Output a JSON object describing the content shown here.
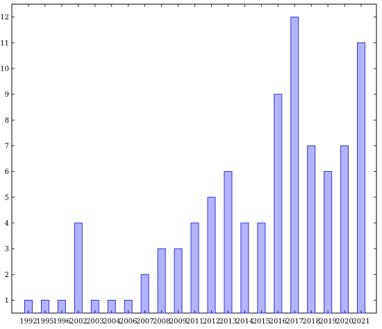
{
  "chart_data": {
    "type": "bar",
    "title": "",
    "xlabel": "",
    "ylabel": "",
    "categories": [
      "1992",
      "1995",
      "1996",
      "2002",
      "2003",
      "2004",
      "2006",
      "2007",
      "2008",
      "2009",
      "2011",
      "2012",
      "2013",
      "2014",
      "2015",
      "2016",
      "2017",
      "2018",
      "2019",
      "2020",
      "2021"
    ],
    "values": [
      1,
      1,
      1,
      4,
      1,
      1,
      1,
      2,
      3,
      3,
      4,
      5,
      6,
      4,
      4,
      9,
      12,
      7,
      6,
      7,
      11
    ],
    "ylim": [
      0.5,
      12.5
    ],
    "yticks": [
      "1",
      "2",
      "3",
      "4",
      "5",
      "6",
      "7",
      "8",
      "9",
      "10",
      "11",
      "12"
    ],
    "grid": false,
    "colors": {
      "bar_fill": "#b3b3ff",
      "bar_stroke": "#3333cc"
    }
  }
}
